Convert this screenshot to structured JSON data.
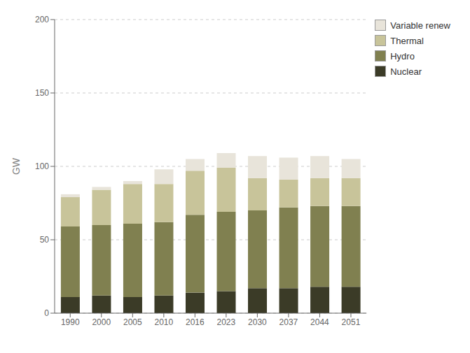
{
  "chart_data": {
    "type": "bar",
    "stacked": true,
    "ylabel": "GW",
    "categories": [
      "1990",
      "2000",
      "2005",
      "2010",
      "2016",
      "2023",
      "2030",
      "2037",
      "2044",
      "2051"
    ],
    "series": [
      {
        "name": "Nuclear",
        "color": "#3b3b27",
        "values": [
          11,
          12,
          11,
          12,
          14,
          15,
          17,
          17,
          18,
          18
        ]
      },
      {
        "name": "Hydro",
        "color": "#808050",
        "values": [
          48,
          48,
          50,
          50,
          53,
          54,
          53,
          55,
          55,
          55
        ]
      },
      {
        "name": "Thermal",
        "color": "#c8c49a",
        "values": [
          20,
          24,
          27,
          26,
          30,
          30,
          22,
          19,
          19,
          19
        ]
      },
      {
        "name": "Variable renew",
        "color": "#e8e4da",
        "values": [
          2,
          2,
          2,
          10,
          8,
          10,
          15,
          15,
          15,
          13
        ]
      }
    ],
    "ylim": [
      0,
      200
    ],
    "yticks": [
      0,
      50,
      100,
      150,
      200
    ],
    "grid": true,
    "legend": "upper right"
  }
}
